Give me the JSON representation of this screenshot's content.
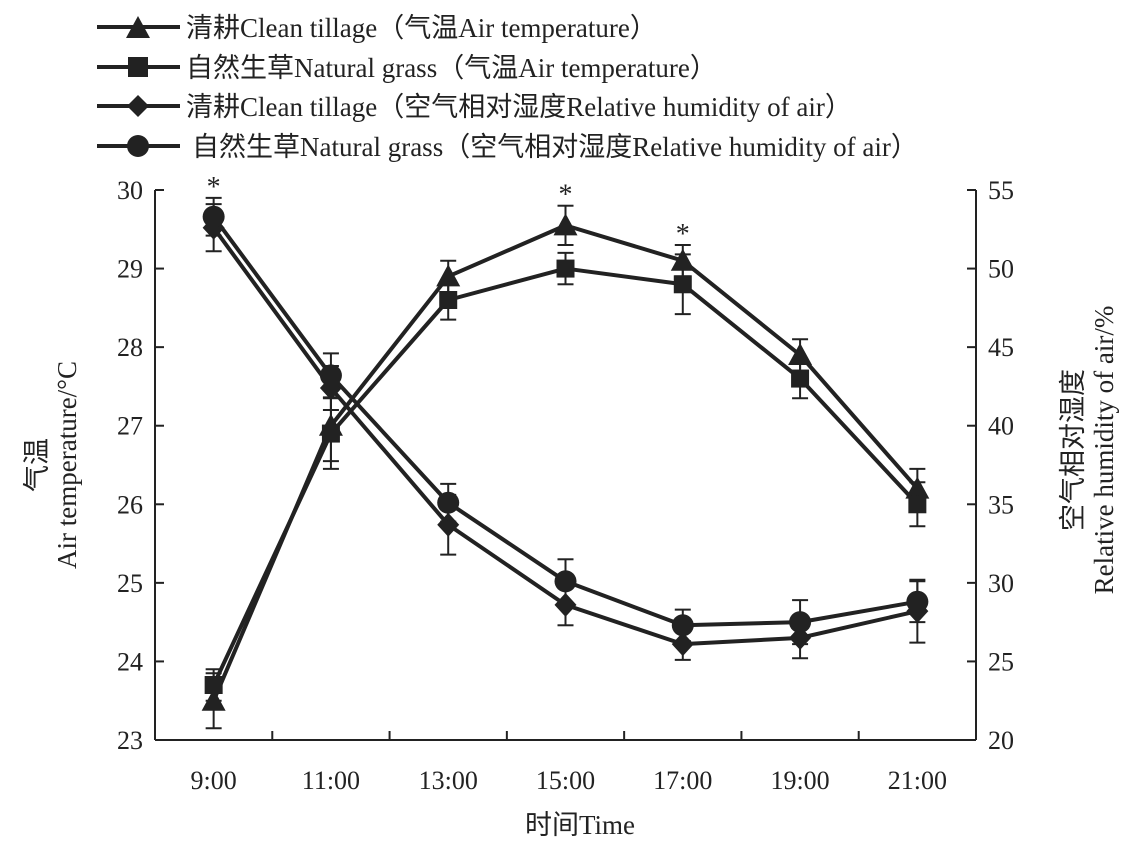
{
  "chart_data": {
    "type": "line",
    "categories": [
      "9:00",
      "11:00",
      "13:00",
      "15:00",
      "17:00",
      "19:00",
      "21:00"
    ],
    "xlabel": "时间Time",
    "ylabel_left": [
      "气温",
      "Air temperature/°C"
    ],
    "ylabel_right": [
      "空气相对湿度",
      "Relative humidity of air/%"
    ],
    "ylim_left": [
      23,
      30
    ],
    "yticks_left": [
      23,
      24,
      25,
      26,
      27,
      28,
      29,
      30
    ],
    "ylim_right": [
      20,
      55
    ],
    "yticks_right": [
      20,
      25,
      30,
      35,
      40,
      45,
      50,
      55
    ],
    "series": [
      {
        "name": "清耕Clean tillage（气温Air temperature）",
        "axis": "left",
        "marker": "triangle",
        "values": [
          23.5,
          27.0,
          28.9,
          29.55,
          29.1,
          27.9,
          26.2
        ],
        "errors": [
          0.35,
          0.45,
          0.2,
          0.25,
          0.2,
          0.2,
          0.25
        ]
      },
      {
        "name": "自然生草Natural grass（气温Air temperature）",
        "axis": "left",
        "marker": "square",
        "values": [
          23.7,
          26.9,
          28.6,
          29.0,
          28.8,
          27.6,
          26.0
        ],
        "errors": [
          0.2,
          0.45,
          0.25,
          0.2,
          0.38,
          0.25,
          0.28
        ]
      },
      {
        "name": "清耕Clean tillage（空气相对湿度Relative humidity of air）",
        "axis": "right",
        "marker": "diamond",
        "values": [
          52.6,
          42.4,
          33.7,
          28.6,
          26.1,
          26.5,
          28.2
        ],
        "errors": [
          1.5,
          1.4,
          1.9,
          1.3,
          1.0,
          1.3,
          2.0
        ]
      },
      {
        "name": "自然生草Natural grass（空气相对湿度Relative humidity of air）",
        "axis": "right",
        "marker": "circle",
        "values": [
          53.3,
          43.2,
          35.1,
          30.1,
          27.3,
          27.5,
          28.8
        ],
        "errors": [
          1.2,
          1.4,
          1.2,
          1.4,
          1.0,
          1.4,
          1.3
        ]
      }
    ],
    "annotations": [
      {
        "text": "*",
        "category": "9:00"
      },
      {
        "text": "*",
        "category": "15:00"
      },
      {
        "text": "*",
        "category": "17:00"
      }
    ],
    "legend": "top-left"
  }
}
